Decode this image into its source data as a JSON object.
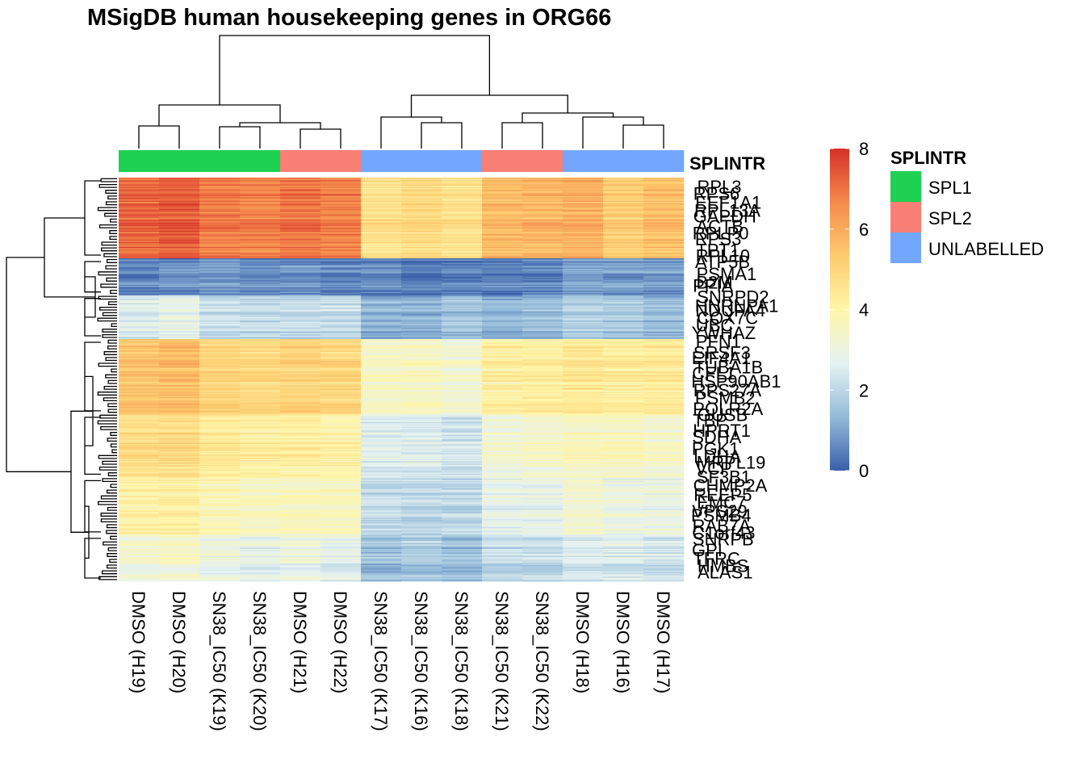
{
  "chart_data": {
    "type": "heatmap",
    "title": "MSigDB human housekeeping genes in ORG66",
    "columns": [
      "DMSO (H19)",
      "DMSO (H20)",
      "SN38_IC50 (K19)",
      "SN38_IC50 (K20)",
      "DMSO (H21)",
      "DMSO (H22)",
      "SN38_IC50 (K17)",
      "SN38_IC50 (K16)",
      "SN38_IC50 (K18)",
      "SN38_IC50 (K21)",
      "SN38_IC50 (K22)",
      "DMSO (H18)",
      "DMSO (H16)",
      "DMSO (H17)"
    ],
    "annotation": {
      "name": "SPLINTR",
      "values": [
        "SPL1",
        "SPL1",
        "SPL1",
        "SPL1",
        "SPL2",
        "SPL2",
        "UNLABELLED",
        "UNLABELLED",
        "UNLABELLED",
        "SPL2",
        "SPL2",
        "UNLABELLED",
        "UNLABELLED",
        "UNLABELLED"
      ],
      "legend": [
        {
          "label": "SPL1",
          "color": "#1ED152"
        },
        {
          "label": "SPL2",
          "color": "#FA7F75"
        },
        {
          "label": "UNLABELLED",
          "color": "#72A7FD"
        }
      ]
    },
    "color_scale": {
      "min": 0,
      "max": 8,
      "ticks": [
        0,
        2,
        4,
        6,
        8
      ],
      "colors": [
        "#3A5FAA",
        "#94BBD9",
        "#E5F2F2",
        "#FFF6A8",
        "#FDCB6E",
        "#F58A4C",
        "#D73028"
      ]
    },
    "row_blocks": [
      {
        "rows": 70,
        "base": [
          7.1,
          7.3,
          6.8,
          6.7,
          6.9,
          6.7,
          4.6,
          4.8,
          4.6,
          5.6,
          5.7,
          5.8,
          5.2,
          5.5
        ]
      },
      {
        "rows": 32,
        "base": [
          0.6,
          0.7,
          0.9,
          0.7,
          0.7,
          0.6,
          0.6,
          0.5,
          0.5,
          0.5,
          0.6,
          1.0,
          0.9,
          0.9
        ]
      },
      {
        "rows": 38,
        "base": [
          2.5,
          2.8,
          2.1,
          2.1,
          2.1,
          2.1,
          1.2,
          1.2,
          1.5,
          1.2,
          1.4,
          1.8,
          1.7,
          1.4
        ]
      },
      {
        "rows": 65,
        "base": [
          5.4,
          5.6,
          5.0,
          4.9,
          5.0,
          4.9,
          3.4,
          3.5,
          3.2,
          4.1,
          4.2,
          4.4,
          4.2,
          4.3
        ]
      },
      {
        "rows": 55,
        "base": [
          4.8,
          4.8,
          4.4,
          4.2,
          4.2,
          4.0,
          2.6,
          2.5,
          2.3,
          3.2,
          3.4,
          3.6,
          3.6,
          3.4
        ]
      },
      {
        "rows": 50,
        "base": [
          4.1,
          4.2,
          3.8,
          3.6,
          3.6,
          3.6,
          2.1,
          2.0,
          2.0,
          2.8,
          2.8,
          3.3,
          3.0,
          3.0
        ]
      },
      {
        "rows": 40,
        "base": [
          3.2,
          3.4,
          3.0,
          2.8,
          2.9,
          2.7,
          1.5,
          1.7,
          1.5,
          2.1,
          2.1,
          2.5,
          2.5,
          2.3
        ]
      }
    ],
    "row_labels": [
      "RPL3",
      "RPS6",
      "EEF1A1",
      "RPL13A",
      "GAPDH",
      "ACTB",
      "RPLP0",
      "RPS3",
      "TPT1",
      "RPL10",
      "ATP5B",
      "PSMA1",
      "B2M",
      "PPIA",
      "SNRPD2",
      "HNRNPA1",
      "NDUFA4",
      "COX7C",
      "UBC",
      "YWHAZ",
      "PFN1",
      "SRSF3",
      "EIF4A1",
      "TUBA1B",
      "CFL1",
      "HSP90AB1",
      "RPS27A",
      "PSMB2",
      "POLR2A",
      "GUSB",
      "TBP",
      "HPRT1",
      "SDHA",
      "PGK1",
      "LDHA",
      "MRPL19",
      "VCP",
      "SF3B1",
      "CHMP2A",
      "REEP5",
      "EMC7",
      "VPS29",
      "PSMB4",
      "RAB7A",
      "C1orf43",
      "SNRPB",
      "GPI",
      "TFRC",
      "HMBS",
      "ALAS1"
    ],
    "ylabel": "",
    "xlabel": ""
  }
}
